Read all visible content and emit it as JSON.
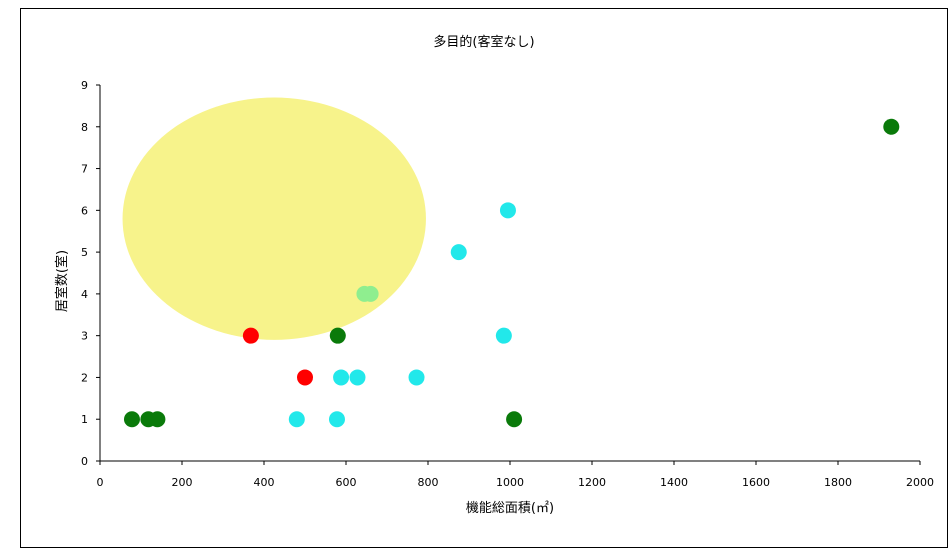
{
  "chart_data": {
    "type": "scatter",
    "title": "多目的(客室なし)",
    "xlabel": "機能総面積(㎡)",
    "ylabel": "居室数(室)",
    "xlim": [
      0,
      2000
    ],
    "ylim": [
      0,
      9
    ],
    "xticks": [
      0,
      200,
      400,
      600,
      800,
      1000,
      1200,
      1400,
      1600,
      1800,
      2000
    ],
    "yticks": [
      0,
      1,
      2,
      3,
      4,
      5,
      6,
      7,
      8,
      9
    ],
    "grid": false,
    "legend": "none",
    "highlight_ellipse": {
      "cx": 425,
      "cy": 5.8,
      "rx": 370,
      "ry": 2.9,
      "color": "#f7f38b"
    },
    "points": [
      {
        "x": 78,
        "y": 1,
        "color": "#0a7a0a"
      },
      {
        "x": 118,
        "y": 1,
        "color": "#0a7a0a"
      },
      {
        "x": 140,
        "y": 1,
        "color": "#0a7a0a"
      },
      {
        "x": 580,
        "y": 3,
        "color": "#0a7a0a"
      },
      {
        "x": 1010,
        "y": 1,
        "color": "#0a7a0a"
      },
      {
        "x": 1930,
        "y": 8,
        "color": "#0a7a0a"
      },
      {
        "x": 368,
        "y": 3,
        "color": "#ff0000"
      },
      {
        "x": 500,
        "y": 2,
        "color": "#ff0000"
      },
      {
        "x": 645,
        "y": 4,
        "color": "#8fee8f"
      },
      {
        "x": 660,
        "y": 4,
        "color": "#8fee8f"
      },
      {
        "x": 480,
        "y": 1,
        "color": "#22e8ea"
      },
      {
        "x": 578,
        "y": 1,
        "color": "#22e8ea"
      },
      {
        "x": 588,
        "y": 2,
        "color": "#22e8ea"
      },
      {
        "x": 628,
        "y": 2,
        "color": "#22e8ea"
      },
      {
        "x": 772,
        "y": 2,
        "color": "#22e8ea"
      },
      {
        "x": 875,
        "y": 5,
        "color": "#22e8ea"
      },
      {
        "x": 985,
        "y": 3,
        "color": "#22e8ea"
      },
      {
        "x": 995,
        "y": 6,
        "color": "#22e8ea"
      }
    ]
  }
}
